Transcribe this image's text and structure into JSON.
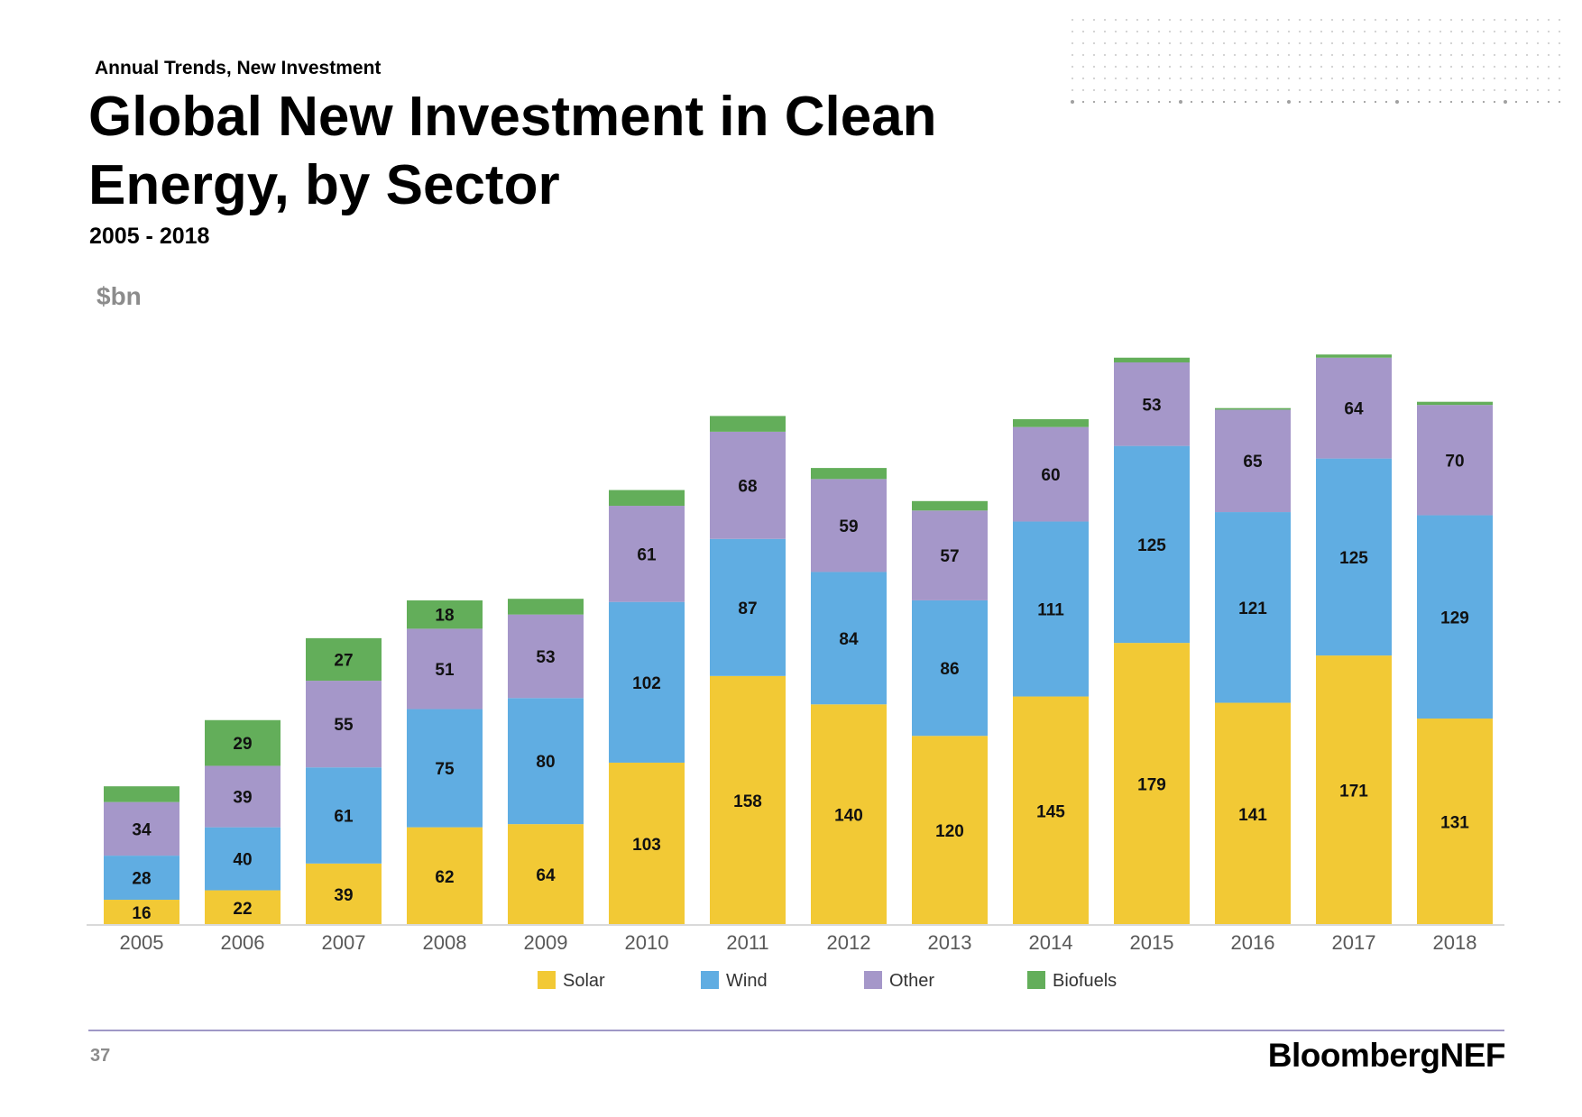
{
  "header": {
    "kicker": "Annual Trends, New Investment",
    "title": "Global New Investment in Clean Energy, by Sector",
    "subtitle": "2005 - 2018",
    "unit": "$bn"
  },
  "footer": {
    "page_number": "37",
    "brand": "BloombergNEF"
  },
  "colors": {
    "solar": "#f2c935",
    "wind": "#60ade2",
    "other": "#a597c9",
    "biofuels": "#63ae5a"
  },
  "chart_data": {
    "type": "bar",
    "stacked": true,
    "categories": [
      "2005",
      "2006",
      "2007",
      "2008",
      "2009",
      "2010",
      "2011",
      "2012",
      "2013",
      "2014",
      "2015",
      "2016",
      "2017",
      "2018"
    ],
    "series": [
      {
        "name": "Solar",
        "values": [
          16,
          22,
          39,
          62,
          64,
          103,
          158,
          140,
          120,
          145,
          179,
          141,
          171,
          131
        ]
      },
      {
        "name": "Wind",
        "values": [
          28,
          40,
          61,
          75,
          80,
          102,
          87,
          84,
          86,
          111,
          125,
          121,
          125,
          129
        ]
      },
      {
        "name": "Other",
        "values": [
          34,
          39,
          55,
          51,
          53,
          61,
          68,
          59,
          57,
          60,
          53,
          65,
          64,
          70
        ]
      },
      {
        "name": "Biofuels",
        "values": [
          10,
          29,
          27,
          18,
          10,
          10,
          10,
          7,
          6,
          5,
          3,
          1,
          2,
          2
        ]
      }
    ],
    "labeled_series": [
      [
        true,
        true,
        true,
        true,
        true,
        true,
        true,
        true,
        true,
        true,
        true,
        true,
        true,
        true
      ],
      [
        true,
        true,
        true,
        true,
        true,
        true,
        true,
        true,
        true,
        true,
        true,
        true,
        true,
        true
      ],
      [
        true,
        true,
        true,
        true,
        true,
        true,
        true,
        true,
        true,
        true,
        true,
        true,
        true,
        true
      ],
      [
        false,
        true,
        true,
        true,
        false,
        false,
        false,
        false,
        false,
        false,
        false,
        false,
        false,
        false
      ]
    ],
    "ylim": [
      0,
      365
    ],
    "legend": "bottom",
    "grid": false
  }
}
